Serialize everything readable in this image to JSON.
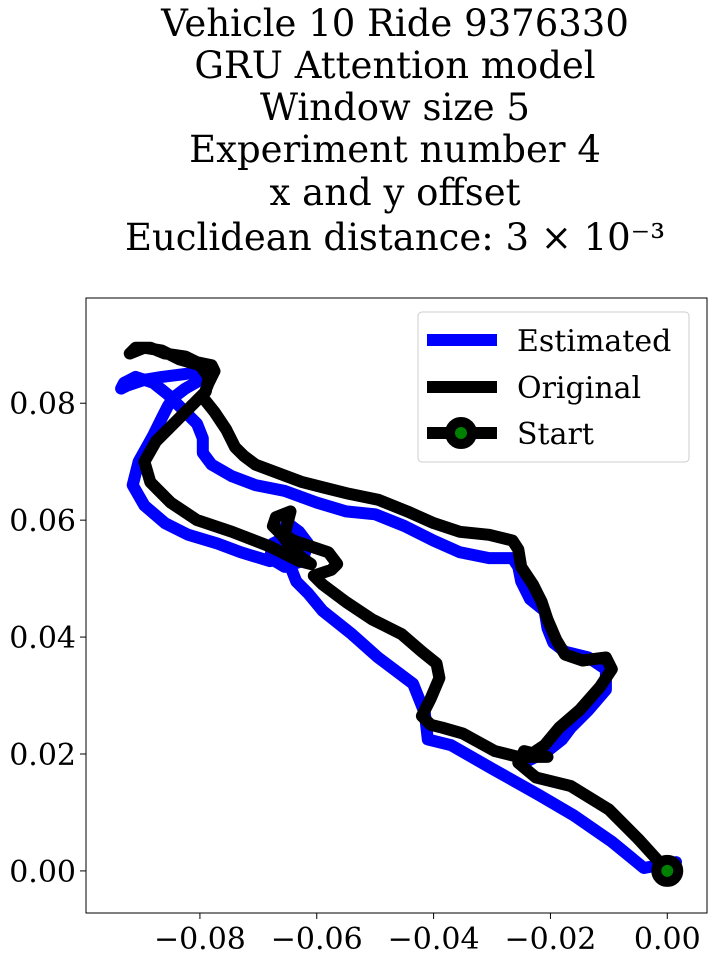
{
  "chart_data": {
    "type": "line",
    "title_lines": [
      "Vehicle 10 Ride 9376330",
      "GRU Attention model",
      "Window size 5",
      "Experiment number 4",
      "x and y offset",
      "Euclidean distance: 3 × 10⁻³"
    ],
    "xlabel": "",
    "ylabel": "",
    "xlim": [
      -0.0995,
      0.0068
    ],
    "ylim": [
      -0.0072,
      0.098
    ],
    "x_ticks": [
      -0.08,
      -0.06,
      -0.04,
      -0.02,
      0.0
    ],
    "x_tick_labels": [
      "−0.08",
      "−0.06",
      "−0.04",
      "−0.02",
      "0.00"
    ],
    "y_ticks": [
      0.0,
      0.02,
      0.04,
      0.06,
      0.08
    ],
    "y_tick_labels": [
      "0.00",
      "0.02",
      "0.04",
      "0.06",
      "0.08"
    ],
    "grid": false,
    "legend_position": "top-right",
    "series": [
      {
        "name": "Estimated",
        "color": "#0000ff",
        "x": [
          0.0015,
          -0.004,
          -0.0095,
          -0.016,
          -0.022,
          -0.03,
          -0.037,
          -0.041,
          -0.0415,
          -0.0435,
          -0.0495,
          -0.054,
          -0.059,
          -0.0615,
          -0.0635,
          -0.0645,
          -0.0655,
          -0.066,
          -0.065,
          -0.063,
          -0.0615,
          -0.0625,
          -0.0655,
          -0.068,
          -0.0675,
          -0.0645,
          -0.0625,
          -0.0645,
          -0.068,
          -0.073,
          -0.077,
          -0.082,
          -0.086,
          -0.0895,
          -0.0915,
          -0.0905,
          -0.088,
          -0.0865,
          -0.0855,
          -0.0845,
          -0.0825,
          -0.079,
          -0.0795,
          -0.0825,
          -0.0865,
          -0.0895,
          -0.0925,
          -0.0935,
          -0.093,
          -0.091,
          -0.088,
          -0.0855,
          -0.083,
          -0.0805,
          -0.0795,
          -0.0795,
          -0.078,
          -0.0745,
          -0.0705,
          -0.0655,
          -0.06,
          -0.055,
          -0.05,
          -0.045,
          -0.04,
          -0.0355,
          -0.0305,
          -0.0265,
          -0.0255,
          -0.025,
          -0.0235,
          -0.021,
          -0.0205,
          -0.0195,
          -0.0175,
          -0.0135,
          -0.0105,
          -0.0105,
          -0.0135,
          -0.0165,
          -0.018,
          -0.0205,
          -0.0225,
          -0.0245
        ],
        "y": [
          0.0015,
          0.0005,
          0.005,
          0.0095,
          0.013,
          0.0175,
          0.0215,
          0.0225,
          0.027,
          0.032,
          0.0365,
          0.0405,
          0.0445,
          0.0475,
          0.0495,
          0.052,
          0.0545,
          0.058,
          0.0595,
          0.058,
          0.056,
          0.053,
          0.052,
          0.0535,
          0.056,
          0.0575,
          0.0555,
          0.0535,
          0.053,
          0.0545,
          0.056,
          0.0575,
          0.0595,
          0.0625,
          0.066,
          0.07,
          0.0745,
          0.0775,
          0.0795,
          0.081,
          0.0825,
          0.0845,
          0.0855,
          0.085,
          0.0845,
          0.084,
          0.083,
          0.0825,
          0.0835,
          0.0845,
          0.0835,
          0.0815,
          0.079,
          0.0765,
          0.074,
          0.0715,
          0.0695,
          0.0675,
          0.066,
          0.065,
          0.063,
          0.0615,
          0.061,
          0.059,
          0.0565,
          0.0545,
          0.0535,
          0.0535,
          0.052,
          0.0495,
          0.0465,
          0.0445,
          0.0415,
          0.039,
          0.0375,
          0.0365,
          0.0345,
          0.031,
          0.0275,
          0.0245,
          0.0225,
          0.0205,
          0.0195,
          0.0185
        ]
      },
      {
        "name": "Original",
        "color": "#000000",
        "x": [
          0.0,
          -0.005,
          -0.01,
          -0.0165,
          -0.0225,
          -0.0255,
          -0.0245,
          -0.0205,
          -0.0235,
          -0.0255,
          -0.0295,
          -0.035,
          -0.0385,
          -0.0405,
          -0.042,
          -0.0405,
          -0.039,
          -0.0395,
          -0.042,
          -0.0455,
          -0.0505,
          -0.055,
          -0.059,
          -0.0605,
          -0.0575,
          -0.0565,
          -0.058,
          -0.061,
          -0.064,
          -0.0655,
          -0.065,
          -0.0645,
          -0.067,
          -0.0675,
          -0.066,
          -0.0645,
          -0.0625,
          -0.061,
          -0.063,
          -0.068,
          -0.0745,
          -0.0805,
          -0.085,
          -0.0885,
          -0.0895,
          -0.0875,
          -0.0845,
          -0.0825,
          -0.0805,
          -0.079,
          -0.0785,
          -0.08,
          -0.0835,
          -0.0865,
          -0.0895,
          -0.092,
          -0.091,
          -0.0885,
          -0.086,
          -0.0825,
          -0.0805,
          -0.078,
          -0.0775,
          -0.0785,
          -0.0795,
          -0.0775,
          -0.0755,
          -0.074,
          -0.0725,
          -0.0705,
          -0.0665,
          -0.0625,
          -0.0585,
          -0.0545,
          -0.0495,
          -0.0445,
          -0.04,
          -0.0355,
          -0.0305,
          -0.0265,
          -0.0255,
          -0.025,
          -0.023,
          -0.0215,
          -0.0205,
          -0.019,
          -0.0175,
          -0.0145,
          -0.0105,
          -0.0095,
          -0.0115,
          -0.015,
          -0.0185,
          -0.021,
          -0.0225
        ],
        "y": [
          0.0,
          0.0055,
          0.0105,
          0.0145,
          0.016,
          0.0185,
          0.0205,
          0.0195,
          0.0195,
          0.0195,
          0.0205,
          0.0235,
          0.0245,
          0.025,
          0.0265,
          0.0295,
          0.033,
          0.0355,
          0.0375,
          0.0405,
          0.043,
          0.046,
          0.049,
          0.0505,
          0.0515,
          0.0525,
          0.0545,
          0.0555,
          0.0565,
          0.0575,
          0.0595,
          0.0615,
          0.0605,
          0.059,
          0.0575,
          0.0555,
          0.0535,
          0.0525,
          0.053,
          0.0555,
          0.058,
          0.06,
          0.063,
          0.0665,
          0.07,
          0.0735,
          0.0765,
          0.0785,
          0.0805,
          0.082,
          0.0845,
          0.0865,
          0.0875,
          0.089,
          0.0895,
          0.0885,
          0.0895,
          0.0895,
          0.0885,
          0.088,
          0.087,
          0.0865,
          0.0855,
          0.0835,
          0.081,
          0.0785,
          0.0755,
          0.0725,
          0.071,
          0.0695,
          0.068,
          0.0665,
          0.0655,
          0.0645,
          0.0635,
          0.0615,
          0.0595,
          0.058,
          0.0575,
          0.0565,
          0.055,
          0.052,
          0.049,
          0.046,
          0.043,
          0.0395,
          0.037,
          0.036,
          0.0365,
          0.0345,
          0.0315,
          0.0275,
          0.0245,
          0.0215,
          0.0205
        ]
      }
    ],
    "start_marker": {
      "name": "Start",
      "x": 0.0,
      "y": 0.0,
      "edge_color": "#000000",
      "face_color": "#008000"
    }
  }
}
